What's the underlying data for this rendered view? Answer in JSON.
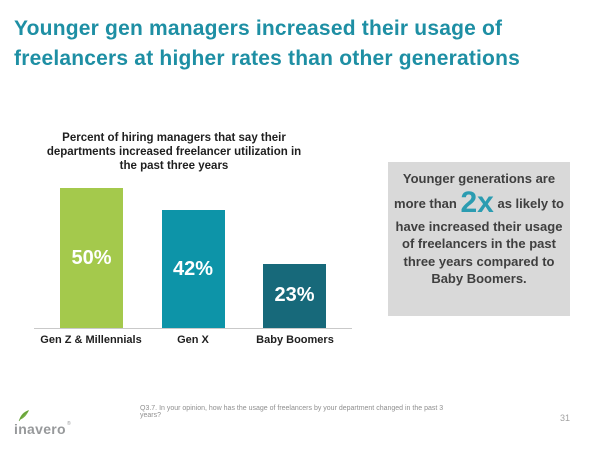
{
  "slide": {
    "title": "Younger gen managers increased their usage of freelancers at higher rates than other generations",
    "footnote": "Q3.7. In your opinion, how has the usage of freelancers by your department changed in the past 3 years?",
    "page_number": "31",
    "logo_text": "inavero",
    "logo_mark": "®"
  },
  "chart_data": {
    "type": "bar",
    "title": "Percent of hiring managers that say their departments increased freelancer utilization in the past three years",
    "categories": [
      "Gen Z & Millennials",
      "Gen X",
      "Baby Boomers"
    ],
    "values": [
      50,
      42,
      23
    ],
    "value_labels": [
      "50%",
      "42%",
      "23%"
    ],
    "bar_colors": [
      "#a4c94c",
      "#0d94a8",
      "#17697a"
    ],
    "ylim": [
      0,
      50
    ],
    "axis": "x-baseline only, no gridlines, no y-axis ticks",
    "legend": "none",
    "value_label_position": "centered inside bar, white bold"
  },
  "callout": {
    "before": "Younger generations are more than",
    "highlight": "2x",
    "after": "as likely to have increased their usage of freelancers in the past three years compared to Baby Boomers.",
    "background_color": "#d9d9d9",
    "highlight_color": "#2b9cb1"
  },
  "colors": {
    "title_teal": "#1e8fa4",
    "chart_text": "#1f1f1f",
    "axis_line": "#c9c9c9",
    "footnote_gray": "#8f8f8f",
    "logo_gray": "#97999b",
    "leaf_green": "#76b043"
  }
}
